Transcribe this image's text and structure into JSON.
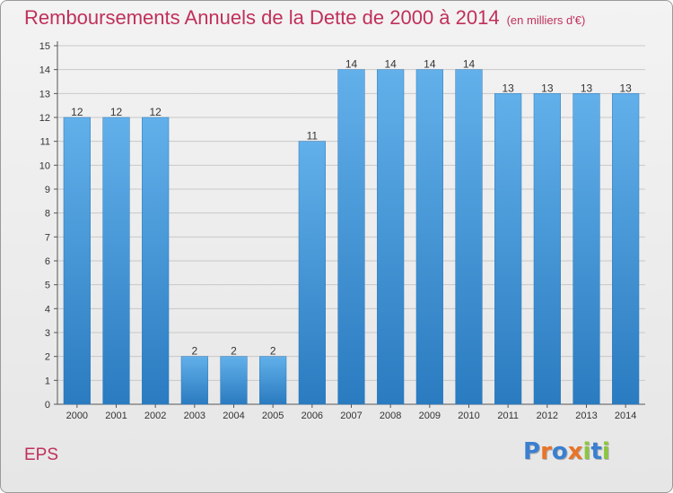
{
  "chart_data": {
    "type": "bar",
    "title": "Remboursements Annuels de la Dette de 2000 à 2014",
    "subtitle": "(en milliers d'€)",
    "xlabel": "",
    "ylabel": "",
    "categories": [
      "2000",
      "2001",
      "2002",
      "2003",
      "2004",
      "2005",
      "2006",
      "2007",
      "2008",
      "2009",
      "2010",
      "2011",
      "2012",
      "2013",
      "2014"
    ],
    "values": [
      12,
      12,
      12,
      2,
      2,
      2,
      11,
      14,
      14,
      14,
      14,
      13,
      13,
      13,
      13
    ],
    "data_labels": [
      "12",
      "12",
      "12",
      "2",
      "2",
      "2",
      "11",
      "14",
      "14",
      "14",
      "14",
      "13",
      "13",
      "13",
      "13"
    ],
    "ylim": [
      0,
      15
    ],
    "yticks": [
      0,
      1,
      2,
      3,
      4,
      5,
      6,
      7,
      8,
      9,
      10,
      11,
      12,
      13,
      14,
      15
    ],
    "grid": true,
    "legend": "none",
    "bar_color_top": "#62b0ea",
    "bar_color_bottom": "#2a7bc0",
    "grid_color": "#c8c8c8"
  },
  "footer": {
    "commune": "EPS",
    "logo_letters": [
      "P",
      "r",
      "o",
      "x",
      "i",
      "t",
      "i"
    ],
    "logo_colors": [
      "#3a7fd0",
      "#e8742a",
      "#3a7fd0",
      "#e8742a",
      "#8cc63f",
      "#3a7fd0",
      "#8cc63f"
    ]
  },
  "colors": {
    "title": "#c0305a",
    "background_top": "#f3f3f3",
    "background_bottom": "#e6e6e6"
  }
}
